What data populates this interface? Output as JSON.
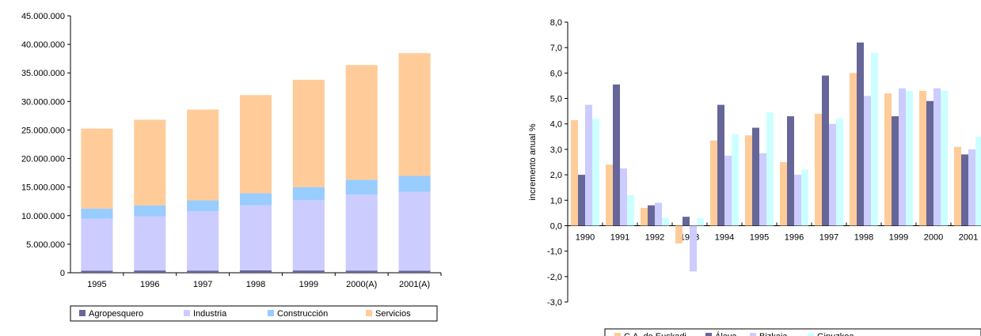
{
  "chart_data": [
    {
      "type": "bar",
      "stacked": true,
      "categories": [
        "1995",
        "1996",
        "1997",
        "1998",
        "1999",
        "2000(A)",
        "2001(A)"
      ],
      "y_ticks": [
        "0",
        "5.000.000",
        "10.000.000",
        "15.000.000",
        "20.000.000",
        "25.000.000",
        "30.000.000",
        "35.000.000",
        "40.000.000",
        "45.000.000"
      ],
      "ylim": [
        0,
        45000000
      ],
      "legend_position": "bottom",
      "series": [
        {
          "name": "Agropesquero",
          "color": "#666699",
          "values": [
            350000,
            400000,
            380000,
            420000,
            400000,
            380000,
            360000
          ]
        },
        {
          "name": "Industria",
          "color": "#ccccff",
          "values": [
            9100000,
            9500000,
            10400000,
            11400000,
            12300000,
            13300000,
            13800000
          ]
        },
        {
          "name": "Construcción",
          "color": "#99ccff",
          "values": [
            1800000,
            1900000,
            1900000,
            2100000,
            2300000,
            2600000,
            2800000
          ]
        },
        {
          "name": "Servicios",
          "color": "#ffcc99",
          "values": [
            14000000,
            15000000,
            15900000,
            17200000,
            18800000,
            20100000,
            21500000
          ]
        }
      ]
    },
    {
      "type": "bar",
      "categories": [
        "1990",
        "1991",
        "1992",
        "1993",
        "1994",
        "1995",
        "1996",
        "1997",
        "1998",
        "1999",
        "2000",
        "2001"
      ],
      "ylabel": "incremento anual %",
      "y_ticks": [
        "-3,0",
        "-2,0",
        "-1,0",
        "0,0",
        "1,0",
        "2,0",
        "3,0",
        "4,0",
        "5,0",
        "6,0",
        "7,0",
        "8,0"
      ],
      "ylim": [
        -3,
        8
      ],
      "legend_position": "bottom",
      "series": [
        {
          "name": "C.A. de Euskadi",
          "color": "#ffcc99",
          "values": [
            4.15,
            2.4,
            0.7,
            -0.7,
            3.35,
            3.55,
            2.5,
            4.4,
            6.0,
            5.2,
            5.3,
            3.1
          ]
        },
        {
          "name": "Álava",
          "color": "#666699",
          "values": [
            2.0,
            5.55,
            0.8,
            0.35,
            4.75,
            3.85,
            4.3,
            5.9,
            7.2,
            4.3,
            4.9,
            2.8
          ]
        },
        {
          "name": "Bizkaia",
          "color": "#ccccff",
          "values": [
            4.75,
            2.25,
            0.9,
            -1.8,
            2.75,
            2.85,
            2.0,
            4.0,
            5.1,
            5.4,
            5.4,
            3.0
          ]
        },
        {
          "name": "Gipuzkoa",
          "color": "#ccffff",
          "values": [
            4.2,
            1.2,
            0.3,
            0.3,
            3.6,
            4.45,
            2.2,
            4.2,
            6.8,
            5.3,
            5.3,
            3.5
          ]
        }
      ]
    }
  ]
}
